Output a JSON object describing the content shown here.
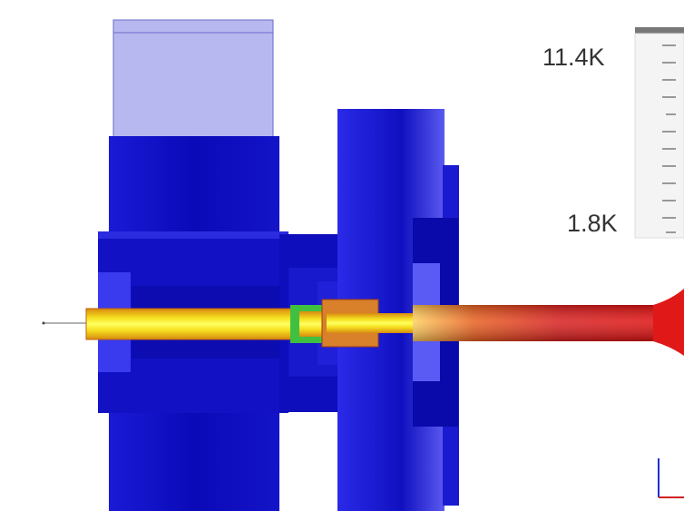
{
  "legend": {
    "max_label": "11.4K",
    "min_label": "1.8K"
  }
}
